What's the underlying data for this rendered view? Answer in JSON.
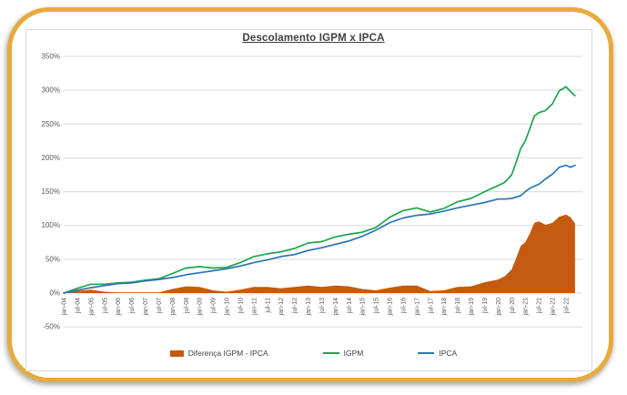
{
  "card": {
    "title": "Descolamento IGPM x IPCA"
  },
  "colors": {
    "diff_area": "#c55a11",
    "igpm_line": "#1ca34d",
    "ipca_line": "#2d74b5",
    "gridline": "#d9d9d9",
    "axis_text": "#595959",
    "title_text": "#3f3f3f",
    "card_border": "#e7aa3c"
  },
  "chart_data": {
    "type": "area",
    "title": "Descolamento IGPM x IPCA",
    "xlabel": "",
    "ylabel": "",
    "grid": true,
    "legend_position": "bottom",
    "y_range_pct": [
      -50,
      350
    ],
    "y_tick_labels": [
      "350%",
      "300%",
      "250%",
      "200%",
      "150%",
      "100%",
      "50%",
      "0%",
      "-50%"
    ],
    "x_tick_labels": [
      "jan-04",
      "jul-04",
      "jan-05",
      "jul-05",
      "jan-06",
      "jul-06",
      "jan-07",
      "jul-07",
      "jan-08",
      "jul-08",
      "jan-09",
      "jul-09",
      "jan-10",
      "jul-10",
      "jan-11",
      "jul-11",
      "jan-12",
      "jul-12",
      "jan-13",
      "jul-13",
      "jan-14",
      "jul-14",
      "jan-15",
      "jul-15",
      "jan-16",
      "jul-16",
      "jan-17",
      "jul-17",
      "jan-18",
      "jul-18",
      "jan-19",
      "jul-19",
      "jan-20",
      "jul-20",
      "jan-21",
      "jul-21",
      "jan-22",
      "jul-22"
    ],
    "months_since_jan04": [
      0,
      6,
      12,
      18,
      24,
      30,
      36,
      42,
      48,
      54,
      60,
      66,
      72,
      78,
      84,
      90,
      96,
      102,
      108,
      114,
      120,
      126,
      132,
      138,
      144,
      150,
      156,
      162,
      168,
      174,
      180,
      186,
      192,
      195,
      198,
      200,
      202,
      204,
      206,
      208,
      210,
      213,
      216,
      219,
      222,
      224,
      226
    ],
    "series": [
      {
        "name": "Diferença IGPM - IPCA",
        "type": "area",
        "color": "#c55a11",
        "values_pct": [
          0,
          3,
          5,
          2,
          1,
          1,
          1,
          1,
          6,
          10,
          9,
          4,
          2,
          5,
          9,
          9,
          7,
          9,
          11,
          9,
          11,
          10,
          6,
          4,
          8,
          11,
          11,
          3,
          4,
          9,
          10,
          16,
          20,
          25,
          35,
          52,
          70,
          75,
          88,
          104,
          106,
          101,
          104,
          113,
          116,
          112,
          103
        ]
      },
      {
        "name": "IGPM",
        "type": "line",
        "color": "#1ca34d",
        "values_pct": [
          0,
          7,
          13,
          13,
          15,
          16,
          19,
          21,
          29,
          37,
          39,
          37,
          38,
          45,
          54,
          58,
          61,
          66,
          74,
          76,
          83,
          87,
          90,
          97,
          112,
          122,
          126,
          120,
          125,
          135,
          140,
          150,
          159,
          164,
          175,
          194,
          214,
          225,
          243,
          262,
          267,
          270,
          280,
          299,
          305,
          298,
          292
        ]
      },
      {
        "name": "IPCA",
        "type": "line",
        "color": "#2d74b5",
        "values_pct": [
          0,
          4,
          8,
          11,
          14,
          15,
          18,
          20,
          23,
          27,
          30,
          33,
          36,
          40,
          45,
          49,
          54,
          57,
          63,
          67,
          72,
          77,
          84,
          93,
          104,
          111,
          115,
          117,
          121,
          126,
          130,
          134,
          139,
          139,
          140,
          142,
          144,
          150,
          155,
          158,
          161,
          169,
          176,
          186,
          189,
          186,
          189
        ]
      }
    ]
  },
  "legend": {
    "items": [
      {
        "label": "Diferença IGPM - IPCA",
        "swatch": "rect",
        "color": "#c55a11"
      },
      {
        "label": "IGPM",
        "swatch": "line",
        "color": "#1ca34d"
      },
      {
        "label": "IPCA",
        "swatch": "line",
        "color": "#2d74b5"
      }
    ]
  }
}
